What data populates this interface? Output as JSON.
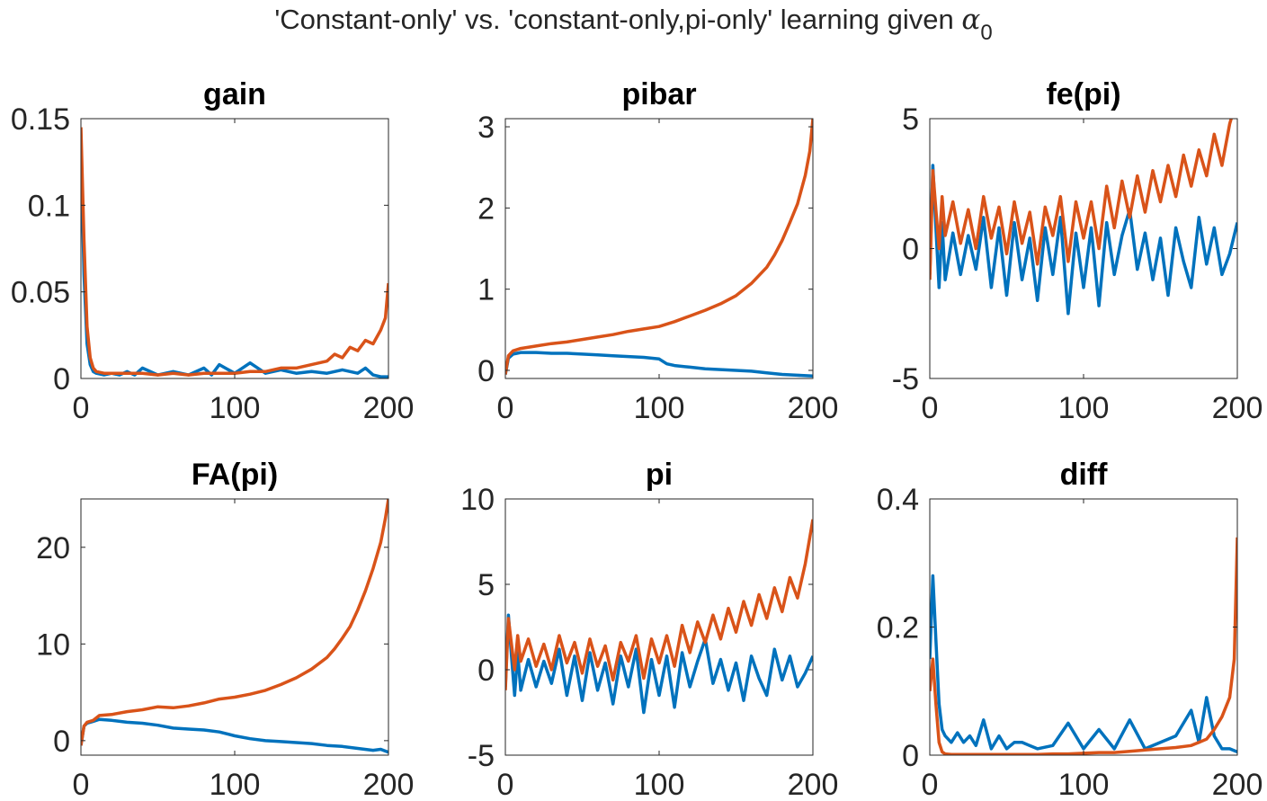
{
  "figure": {
    "title": "'Constant-only' vs. 'constant-only,pi-only' learning given ",
    "title_symbol": "α",
    "title_subscript": "0"
  },
  "colors": {
    "series_1": "#0072BD",
    "series_2": "#D95319",
    "axis": "#262626"
  },
  "chart_data": [
    {
      "type": "line",
      "title": "gain",
      "xlim": [
        0,
        200
      ],
      "ylim": [
        0,
        0.15
      ],
      "xticks": [
        0,
        100,
        200
      ],
      "xtick_labels": [
        "0",
        "100",
        "200"
      ],
      "yticks": [
        0,
        0.05,
        0.1,
        0.15
      ],
      "ytick_labels": [
        "0",
        "0.05",
        "0.1",
        "0.15"
      ],
      "series": [
        {
          "x": [
            0,
            2,
            4,
            6,
            8,
            10,
            15,
            20,
            25,
            30,
            35,
            40,
            50,
            60,
            70,
            80,
            85,
            90,
            100,
            110,
            120,
            130,
            140,
            150,
            160,
            170,
            180,
            185,
            190,
            195,
            200
          ],
          "values": [
            0.135,
            0.06,
            0.02,
            0.008,
            0.004,
            0.003,
            0.002,
            0.003,
            0.002,
            0.004,
            0.002,
            0.006,
            0.002,
            0.004,
            0.002,
            0.006,
            0.002,
            0.008,
            0.003,
            0.009,
            0.003,
            0.005,
            0.003,
            0.004,
            0.003,
            0.005,
            0.003,
            0.006,
            0.002,
            0.001,
            0.001
          ]
        },
        {
          "x": [
            0,
            2,
            4,
            6,
            8,
            10,
            15,
            20,
            30,
            40,
            50,
            60,
            70,
            80,
            90,
            100,
            110,
            120,
            130,
            140,
            150,
            160,
            165,
            170,
            175,
            180,
            185,
            190,
            195,
            198,
            200
          ],
          "values": [
            0.145,
            0.08,
            0.03,
            0.012,
            0.006,
            0.004,
            0.003,
            0.003,
            0.003,
            0.003,
            0.002,
            0.003,
            0.002,
            0.003,
            0.003,
            0.003,
            0.004,
            0.004,
            0.006,
            0.006,
            0.008,
            0.01,
            0.014,
            0.012,
            0.018,
            0.016,
            0.022,
            0.02,
            0.028,
            0.035,
            0.055
          ]
        }
      ]
    },
    {
      "type": "line",
      "title": "pibar",
      "xlim": [
        0,
        200
      ],
      "ylim": [
        -0.1,
        3.1
      ],
      "xticks": [
        0,
        100,
        200
      ],
      "xtick_labels": [
        "0",
        "100",
        "200"
      ],
      "yticks": [
        0,
        1,
        2,
        3
      ],
      "ytick_labels": [
        "0",
        "1",
        "2",
        "3"
      ],
      "series": [
        {
          "x": [
            0,
            2,
            5,
            10,
            20,
            30,
            40,
            50,
            60,
            70,
            80,
            90,
            100,
            105,
            110,
            120,
            130,
            140,
            150,
            160,
            170,
            180,
            190,
            200
          ],
          "values": [
            -0.05,
            0.15,
            0.2,
            0.22,
            0.22,
            0.21,
            0.21,
            0.2,
            0.19,
            0.18,
            0.17,
            0.16,
            0.14,
            0.08,
            0.06,
            0.04,
            0.02,
            0.01,
            0.0,
            -0.01,
            -0.03,
            -0.05,
            -0.06,
            -0.07
          ]
        },
        {
          "x": [
            0,
            2,
            5,
            10,
            20,
            30,
            40,
            50,
            60,
            70,
            80,
            90,
            100,
            110,
            120,
            130,
            140,
            150,
            160,
            170,
            175,
            180,
            185,
            190,
            195,
            198,
            200
          ],
          "values": [
            -0.05,
            0.18,
            0.24,
            0.27,
            0.3,
            0.33,
            0.35,
            0.38,
            0.41,
            0.44,
            0.48,
            0.51,
            0.54,
            0.6,
            0.67,
            0.74,
            0.82,
            0.92,
            1.07,
            1.27,
            1.42,
            1.6,
            1.82,
            2.05,
            2.4,
            2.7,
            3.1
          ]
        }
      ]
    },
    {
      "type": "line",
      "title": "fe(pi)",
      "xlim": [
        0,
        200
      ],
      "ylim": [
        -5,
        5
      ],
      "xticks": [
        0,
        100,
        200
      ],
      "xtick_labels": [
        "0",
        "100",
        "200"
      ],
      "yticks": [
        -5,
        0,
        5
      ],
      "ytick_labels": [
        "-5",
        "0",
        "5"
      ],
      "series": [
        {
          "x": [
            0,
            2,
            4,
            6,
            8,
            10,
            15,
            20,
            25,
            30,
            35,
            40,
            45,
            50,
            55,
            60,
            65,
            70,
            75,
            80,
            85,
            90,
            95,
            100,
            105,
            110,
            115,
            120,
            125,
            130,
            135,
            140,
            145,
            150,
            155,
            160,
            165,
            170,
            175,
            180,
            185,
            190,
            195,
            200
          ],
          "values": [
            -1.0,
            3.2,
            0.8,
            -1.5,
            1.0,
            -1.2,
            0.6,
            -1.0,
            0.5,
            -0.8,
            1.2,
            -1.5,
            0.8,
            -1.8,
            1.0,
            -1.2,
            0.4,
            -2.0,
            0.8,
            -1.0,
            1.2,
            -2.5,
            0.6,
            -1.5,
            0.8,
            -2.2,
            1.0,
            -1.0,
            0.5,
            1.5,
            -0.8,
            0.6,
            -1.2,
            0.4,
            -1.8,
            0.8,
            -0.5,
            -1.5,
            1.2,
            -0.6,
            0.8,
            -1.0,
            -0.2,
            1.0
          ]
        },
        {
          "x": [
            0,
            2,
            4,
            6,
            8,
            10,
            15,
            20,
            25,
            30,
            35,
            40,
            45,
            50,
            55,
            60,
            65,
            70,
            75,
            80,
            85,
            90,
            95,
            100,
            105,
            110,
            115,
            120,
            125,
            130,
            135,
            140,
            145,
            150,
            155,
            160,
            165,
            170,
            175,
            180,
            185,
            190,
            195,
            200
          ],
          "values": [
            -1.2,
            3.0,
            1.5,
            0.0,
            2.0,
            0.5,
            1.8,
            0.2,
            1.5,
            0.0,
            2.0,
            0.4,
            1.6,
            -0.2,
            1.8,
            0.2,
            1.4,
            -0.6,
            1.6,
            0.5,
            2.0,
            -0.5,
            1.8,
            0.4,
            1.8,
            0.0,
            2.4,
            0.8,
            2.6,
            1.2,
            2.8,
            1.4,
            3.0,
            1.8,
            3.2,
            2.0,
            3.6,
            2.4,
            3.8,
            2.8,
            4.4,
            3.2,
            4.8,
            5.8
          ]
        }
      ]
    },
    {
      "type": "line",
      "title": "FA(pi)",
      "xlim": [
        0,
        200
      ],
      "ylim": [
        -1.5,
        25
      ],
      "xticks": [
        0,
        100,
        200
      ],
      "xtick_labels": [
        "0",
        "100",
        "200"
      ],
      "yticks": [
        0,
        10,
        20
      ],
      "ytick_labels": [
        "0",
        "10",
        "20"
      ],
      "series": [
        {
          "x": [
            0,
            2,
            4,
            8,
            12,
            20,
            30,
            40,
            50,
            60,
            70,
            80,
            90,
            100,
            110,
            120,
            130,
            140,
            150,
            160,
            170,
            180,
            190,
            195,
            200
          ],
          "values": [
            -0.5,
            1.5,
            1.8,
            2.0,
            2.2,
            2.1,
            1.9,
            1.8,
            1.6,
            1.3,
            1.2,
            1.1,
            0.9,
            0.5,
            0.2,
            0.0,
            -0.1,
            -0.2,
            -0.3,
            -0.5,
            -0.6,
            -0.8,
            -1.0,
            -0.9,
            -1.2
          ]
        },
        {
          "x": [
            0,
            2,
            4,
            8,
            12,
            20,
            30,
            40,
            50,
            60,
            70,
            80,
            90,
            100,
            110,
            120,
            130,
            140,
            150,
            160,
            165,
            170,
            175,
            180,
            185,
            190,
            195,
            198,
            200
          ],
          "values": [
            -0.5,
            1.5,
            1.9,
            2.1,
            2.6,
            2.7,
            3.0,
            3.2,
            3.5,
            3.4,
            3.6,
            3.9,
            4.3,
            4.5,
            4.8,
            5.2,
            5.8,
            6.5,
            7.4,
            8.6,
            9.5,
            10.6,
            11.8,
            13.5,
            15.5,
            17.8,
            20.5,
            23.0,
            25.0
          ]
        }
      ]
    },
    {
      "type": "line",
      "title": "pi",
      "xlim": [
        0,
        200
      ],
      "ylim": [
        -5,
        10
      ],
      "xticks": [
        0,
        100,
        200
      ],
      "xtick_labels": [
        "0",
        "100",
        "200"
      ],
      "yticks": [
        -5,
        0,
        5,
        10
      ],
      "ytick_labels": [
        "-5",
        "0",
        "5",
        "10"
      ],
      "series": [
        {
          "x": [
            0,
            2,
            4,
            6,
            8,
            10,
            15,
            20,
            25,
            30,
            35,
            40,
            45,
            50,
            55,
            60,
            65,
            70,
            75,
            80,
            85,
            90,
            95,
            100,
            105,
            110,
            115,
            120,
            125,
            130,
            135,
            140,
            145,
            150,
            155,
            160,
            165,
            170,
            175,
            180,
            185,
            190,
            195,
            200
          ],
          "values": [
            -1.0,
            3.2,
            0.8,
            -1.5,
            1.0,
            -1.2,
            0.6,
            -1.0,
            0.5,
            -0.8,
            1.2,
            -1.5,
            0.8,
            -1.8,
            1.0,
            -1.2,
            0.4,
            -2.0,
            0.8,
            -1.0,
            1.2,
            -2.5,
            0.6,
            -1.5,
            0.8,
            -2.2,
            1.0,
            -1.0,
            0.5,
            1.8,
            -0.8,
            0.6,
            -1.2,
            0.4,
            -1.8,
            0.8,
            -0.5,
            -1.5,
            1.2,
            -0.6,
            0.8,
            -1.0,
            -0.2,
            0.8
          ]
        },
        {
          "x": [
            0,
            2,
            4,
            6,
            8,
            10,
            15,
            20,
            25,
            30,
            35,
            40,
            45,
            50,
            55,
            60,
            65,
            70,
            75,
            80,
            85,
            90,
            95,
            100,
            105,
            110,
            115,
            120,
            125,
            130,
            135,
            140,
            145,
            150,
            155,
            160,
            165,
            170,
            175,
            180,
            185,
            190,
            195,
            200
          ],
          "values": [
            -1.2,
            3.0,
            1.5,
            0.0,
            2.0,
            0.5,
            1.8,
            0.2,
            1.5,
            0.0,
            2.0,
            0.4,
            1.6,
            -0.2,
            1.8,
            0.2,
            1.4,
            -0.6,
            1.6,
            0.5,
            2.0,
            -0.5,
            1.8,
            0.4,
            2.0,
            0.2,
            2.6,
            1.0,
            2.8,
            1.6,
            3.2,
            1.8,
            3.6,
            2.2,
            4.0,
            2.6,
            4.4,
            3.0,
            4.8,
            3.4,
            5.4,
            4.2,
            6.2,
            8.8
          ]
        }
      ]
    },
    {
      "type": "line",
      "title": "diff",
      "xlim": [
        0,
        200
      ],
      "ylim": [
        0,
        0.4
      ],
      "xticks": [
        0,
        100,
        200
      ],
      "xtick_labels": [
        "0",
        "100",
        "200"
      ],
      "yticks": [
        0,
        0.2,
        0.4
      ],
      "ytick_labels": [
        "0",
        "0.2",
        "0.4"
      ],
      "series": [
        {
          "x": [
            0,
            2,
            4,
            6,
            8,
            10,
            14,
            18,
            22,
            26,
            30,
            35,
            40,
            45,
            50,
            55,
            60,
            70,
            80,
            90,
            100,
            110,
            120,
            130,
            140,
            150,
            160,
            170,
            175,
            180,
            185,
            190,
            195,
            200
          ],
          "values": [
            0.15,
            0.28,
            0.18,
            0.08,
            0.04,
            0.03,
            0.02,
            0.035,
            0.02,
            0.03,
            0.015,
            0.055,
            0.01,
            0.03,
            0.01,
            0.02,
            0.02,
            0.01,
            0.015,
            0.05,
            0.01,
            0.04,
            0.01,
            0.055,
            0.01,
            0.02,
            0.03,
            0.07,
            0.02,
            0.09,
            0.03,
            0.01,
            0.01,
            0.005
          ]
        },
        {
          "x": [
            0,
            2,
            4,
            6,
            8,
            10,
            14,
            20,
            30,
            40,
            50,
            60,
            70,
            80,
            90,
            100,
            110,
            120,
            130,
            140,
            150,
            160,
            170,
            175,
            180,
            185,
            190,
            195,
            198,
            200
          ],
          "values": [
            0.1,
            0.15,
            0.08,
            0.02,
            0.005,
            0.002,
            0.001,
            0.001,
            0.001,
            0.001,
            0.001,
            0.001,
            0.001,
            0.002,
            0.002,
            0.003,
            0.004,
            0.004,
            0.006,
            0.008,
            0.01,
            0.012,
            0.015,
            0.02,
            0.025,
            0.04,
            0.06,
            0.09,
            0.15,
            0.34
          ]
        }
      ]
    }
  ]
}
